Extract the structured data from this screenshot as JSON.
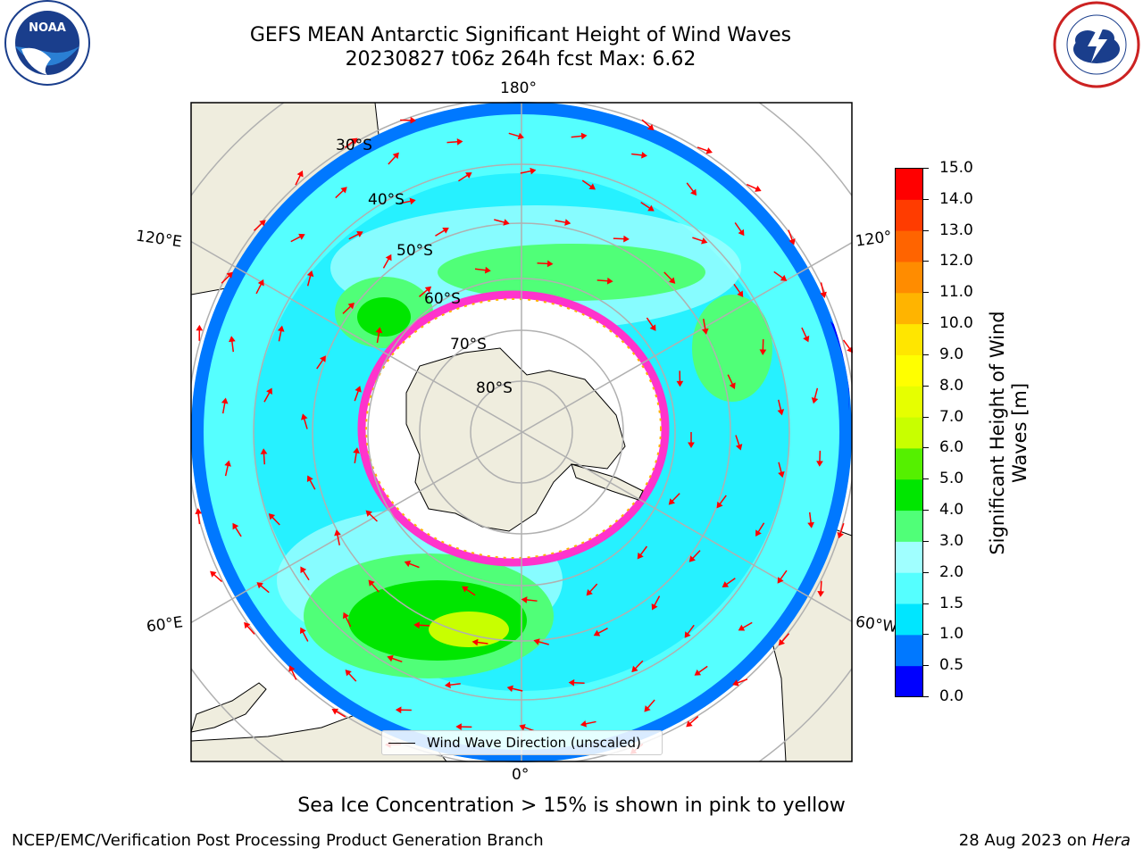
{
  "title": {
    "line1": "GEFS MEAN Antarctic Significant Height of Wind Waves",
    "line2": "20230827 t06z 264h fcst   Max: 6.62"
  },
  "logos": {
    "noaa": {
      "icon": "noaa-logo-icon",
      "text": "NOAA"
    },
    "nws": {
      "icon": "nws-logo-icon"
    }
  },
  "map": {
    "projection": "south-polar-stereographic",
    "longitude_labels": {
      "top": "180°",
      "bottom": "0°",
      "left_upper": "120°E",
      "left_lower": "60°E",
      "right_upper": "120°",
      "right_lower": "60°W"
    },
    "latitude_labels": [
      "30°S",
      "40°S",
      "50°S",
      "60°S",
      "70°S",
      "80°S"
    ],
    "colors": {
      "land": "#efedde",
      "grid": "#b0b0b0",
      "arrow": "#ff0000",
      "ice_edge": "#ff33cc"
    },
    "legend": {
      "label": "Wind Wave Direction (unscaled)"
    }
  },
  "colorbar": {
    "label_line1": "Significant Height of Wind",
    "label_line2": "Waves [m]",
    "ticks": [
      "0.0",
      "0.5",
      "1.0",
      "1.5",
      "2.0",
      "3.0",
      "4.0",
      "5.0",
      "6.0",
      "7.0",
      "8.0",
      "9.0",
      "10.0",
      "11.0",
      "12.0",
      "13.0",
      "14.0",
      "15.0"
    ],
    "colors": [
      "#0000ff",
      "#0078ff",
      "#00e6ff",
      "#55ffff",
      "#a0ffff",
      "#50ff78",
      "#00e600",
      "#55f000",
      "#c8ff00",
      "#e6ff00",
      "#ffff00",
      "#ffe600",
      "#ffb400",
      "#ff8c00",
      "#ff6400",
      "#ff3c00",
      "#ff0000"
    ]
  },
  "notes": {
    "ice": "Sea Ice Concentration > 15% is shown in pink to yellow"
  },
  "footer": {
    "left": "NCEP/EMC/Verification Post Processing Product Generation Branch",
    "right_date": "28 Aug 2023 on",
    "right_host": "Hera"
  }
}
